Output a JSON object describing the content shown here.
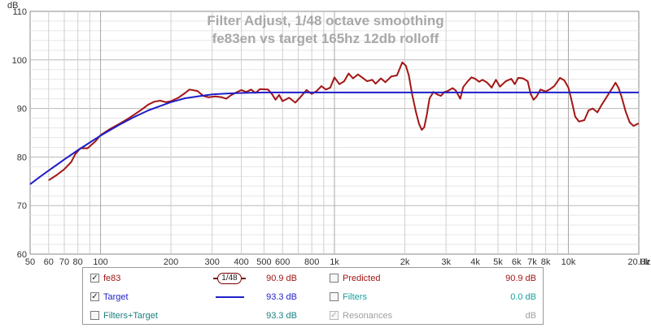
{
  "chart_data": {
    "type": "line",
    "title": "Filter Adjust, 1/48 octave smoothing",
    "subtitle": "fe83en vs target 165hz 12db rolloff",
    "ylabel": "dB",
    "xunit": "Hz",
    "x_scale": "log",
    "xlim": [
      50,
      20000
    ],
    "ylim": [
      60,
      110
    ],
    "grid": true,
    "x_ticks": [
      50,
      60,
      70,
      80,
      100,
      200,
      300,
      400,
      500,
      600,
      800,
      1000,
      2000,
      3000,
      4000,
      5000,
      6000,
      7000,
      8000,
      10000,
      20000
    ],
    "x_tick_labels": [
      "50",
      "60",
      "70",
      "80",
      "100",
      "200",
      "300",
      "400",
      "500",
      "600",
      "800",
      "1k",
      "2k",
      "3k",
      "4k",
      "5k",
      "6k",
      "7k",
      "8k",
      "10k",
      "20.0k"
    ],
    "y_ticks": [
      60,
      70,
      80,
      90,
      100,
      110
    ],
    "y_tick_labels": [
      "60",
      "70",
      "80",
      "90",
      "100",
      "110"
    ],
    "series": [
      {
        "name": "fe83",
        "color": "#a31515",
        "points": [
          [
            60,
            75.2
          ],
          [
            65,
            76.3
          ],
          [
            70,
            77.5
          ],
          [
            75,
            79
          ],
          [
            78,
            80.6
          ],
          [
            82,
            81.8
          ],
          [
            88,
            81.8
          ],
          [
            95,
            83.2
          ],
          [
            100,
            84.5
          ],
          [
            110,
            85.8
          ],
          [
            120,
            86.8
          ],
          [
            130,
            87.8
          ],
          [
            140,
            88.8
          ],
          [
            150,
            89.8
          ],
          [
            160,
            90.8
          ],
          [
            170,
            91.4
          ],
          [
            180,
            91.6
          ],
          [
            190,
            91.3
          ],
          [
            200,
            91.5
          ],
          [
            215,
            92.2
          ],
          [
            230,
            93.2
          ],
          [
            240,
            93.9
          ],
          [
            260,
            93.6
          ],
          [
            275,
            92.6
          ],
          [
            290,
            92.3
          ],
          [
            310,
            92.5
          ],
          [
            330,
            92.3
          ],
          [
            345,
            92.0
          ],
          [
            360,
            92.7
          ],
          [
            380,
            93.3
          ],
          [
            400,
            93.8
          ],
          [
            420,
            93.4
          ],
          [
            440,
            93.9
          ],
          [
            460,
            93.2
          ],
          [
            480,
            94.0
          ],
          [
            520,
            93.9
          ],
          [
            540,
            93.0
          ],
          [
            560,
            91.8
          ],
          [
            580,
            92.8
          ],
          [
            600,
            91.5
          ],
          [
            640,
            92.2
          ],
          [
            680,
            91.2
          ],
          [
            720,
            92.5
          ],
          [
            760,
            93.8
          ],
          [
            800,
            93.0
          ],
          [
            840,
            93.6
          ],
          [
            880,
            94.6
          ],
          [
            920,
            93.9
          ],
          [
            960,
            94.3
          ],
          [
            1000,
            96.4
          ],
          [
            1050,
            95.0
          ],
          [
            1100,
            95.6
          ],
          [
            1150,
            97.2
          ],
          [
            1200,
            96.2
          ],
          [
            1260,
            97.0
          ],
          [
            1320,
            96.3
          ],
          [
            1380,
            95.6
          ],
          [
            1450,
            95.9
          ],
          [
            1500,
            95.1
          ],
          [
            1580,
            96.2
          ],
          [
            1650,
            95.4
          ],
          [
            1750,
            96.6
          ],
          [
            1850,
            96.8
          ],
          [
            1950,
            99.5
          ],
          [
            2020,
            98.8
          ],
          [
            2080,
            96.8
          ],
          [
            2150,
            92.8
          ],
          [
            2230,
            89.3
          ],
          [
            2300,
            86.8
          ],
          [
            2360,
            85.6
          ],
          [
            2420,
            86.1
          ],
          [
            2480,
            88.6
          ],
          [
            2550,
            92.1
          ],
          [
            2650,
            93.4
          ],
          [
            2750,
            92.9
          ],
          [
            2850,
            92.6
          ],
          [
            2950,
            93.4
          ],
          [
            3050,
            93.6
          ],
          [
            3200,
            94.2
          ],
          [
            3300,
            93.7
          ],
          [
            3450,
            92.0
          ],
          [
            3550,
            94.4
          ],
          [
            3700,
            95.5
          ],
          [
            3850,
            96.4
          ],
          [
            4000,
            96.1
          ],
          [
            4150,
            95.5
          ],
          [
            4300,
            95.9
          ],
          [
            4500,
            95.3
          ],
          [
            4700,
            94.3
          ],
          [
            4900,
            95.9
          ],
          [
            5100,
            94.5
          ],
          [
            5400,
            95.6
          ],
          [
            5700,
            96.1
          ],
          [
            5900,
            95.0
          ],
          [
            6100,
            96.3
          ],
          [
            6400,
            96.2
          ],
          [
            6700,
            95.6
          ],
          [
            6900,
            93.0
          ],
          [
            7100,
            91.8
          ],
          [
            7300,
            92.4
          ],
          [
            7600,
            93.9
          ],
          [
            8000,
            93.5
          ],
          [
            8300,
            93.9
          ],
          [
            8700,
            94.6
          ],
          [
            9200,
            96.3
          ],
          [
            9600,
            95.8
          ],
          [
            10000,
            94.3
          ],
          [
            10300,
            91.8
          ],
          [
            10700,
            88.3
          ],
          [
            11100,
            87.3
          ],
          [
            11700,
            87.6
          ],
          [
            12200,
            89.6
          ],
          [
            12700,
            90.0
          ],
          [
            13300,
            89.2
          ],
          [
            13900,
            90.8
          ],
          [
            14600,
            92.4
          ],
          [
            15400,
            94.2
          ],
          [
            15900,
            95.3
          ],
          [
            16400,
            94.2
          ],
          [
            16900,
            92.3
          ],
          [
            17600,
            89.3
          ],
          [
            18300,
            87.1
          ],
          [
            19000,
            86.4
          ],
          [
            19700,
            86.8
          ],
          [
            20000,
            86.9
          ]
        ]
      },
      {
        "name": "Target",
        "color": "#1f1fc8",
        "points": [
          [
            50,
            74.4
          ],
          [
            55,
            75.9
          ],
          [
            60,
            77.2
          ],
          [
            65,
            78.4
          ],
          [
            70,
            79.5
          ],
          [
            80,
            81.4
          ],
          [
            90,
            83.0
          ],
          [
            100,
            84.4
          ],
          [
            120,
            86.6
          ],
          [
            140,
            88.3
          ],
          [
            160,
            89.6
          ],
          [
            180,
            90.5
          ],
          [
            200,
            91.3
          ],
          [
            230,
            92.1
          ],
          [
            260,
            92.5
          ],
          [
            300,
            92.9
          ],
          [
            350,
            93.1
          ],
          [
            400,
            93.2
          ],
          [
            500,
            93.3
          ],
          [
            700,
            93.3
          ],
          [
            1000,
            93.3
          ],
          [
            5000,
            93.3
          ],
          [
            10000,
            93.3
          ],
          [
            20000,
            93.3
          ]
        ]
      }
    ]
  },
  "legend": {
    "rows": [
      {
        "left": {
          "checked": true,
          "label": "fe83",
          "color": "#a31515",
          "badge": "1/48",
          "value": "90.9 dB",
          "value_color": "#a31515"
        },
        "right": {
          "checked": false,
          "label": "Predicted",
          "color": "#a31515",
          "value": "90.9 dB",
          "value_color": "#a31515"
        }
      },
      {
        "left": {
          "checked": true,
          "label": "Target",
          "color": "#1f1fc8",
          "value": "93.3 dB",
          "value_color": "#1f1fc8"
        },
        "right": {
          "checked": false,
          "label": "Filters",
          "color": "#16a0a0",
          "value": "0.0 dB",
          "value_color": "#16a0a0"
        }
      },
      {
        "left": {
          "checked": false,
          "label": "Filters+Target",
          "color": "#1a8080",
          "value": "93.3 dB",
          "value_color": "#1a8080"
        },
        "right": {
          "checked": true,
          "disabled": true,
          "label": "Resonances",
          "color": "#a0a0a0",
          "value": "dB",
          "value_color": "#a0a0a0"
        }
      }
    ]
  }
}
